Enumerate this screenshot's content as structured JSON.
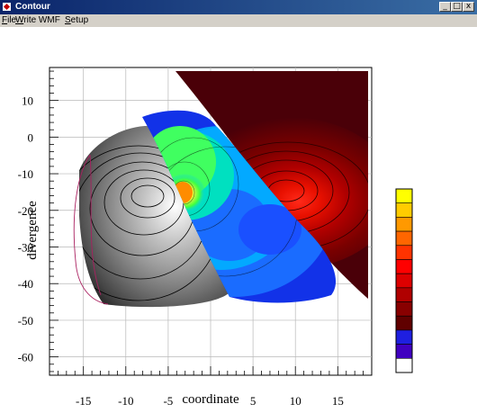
{
  "window": {
    "title": "Contour",
    "min_glyph": "_",
    "max_glyph": "□",
    "close_glyph": "x"
  },
  "menu": [
    {
      "label": "File",
      "underline": "F",
      "rest": "ile"
    },
    {
      "label": "Write WMF",
      "underline": "W",
      "rest": "rite WMF"
    },
    {
      "label": "Setup",
      "underline": "S",
      "rest": "etup"
    }
  ],
  "chart_data": {
    "type": "heatmap",
    "title": "",
    "xlabel": "coordinate",
    "ylabel": "divergence",
    "xlim": [
      -19,
      19
    ],
    "ylim": [
      -65,
      19
    ],
    "x_ticks": [
      "-15",
      "-10",
      "-5",
      "5",
      "10",
      "15"
    ],
    "x_tick_values": [
      -15,
      -10,
      -5,
      5,
      10,
      15
    ],
    "y_ticks": [
      "10",
      "0",
      "-10",
      "-20",
      "-30",
      "-40",
      "-50",
      "-60"
    ],
    "y_tick_values": [
      10,
      0,
      -10,
      -20,
      -30,
      -40,
      -50,
      -60
    ],
    "regions": [
      {
        "name": "",
        "colormap": "grayscale",
        "peak": [
          -7.5,
          -18
        ],
        "center": [
          -9,
          -22
        ]
      },
      {
        "name": "",
        "colormap": "rainbow",
        "peak": [
          -3,
          -16
        ],
        "center": [
          1,
          -25
        ]
      },
      {
        "name": "",
        "colormap": "dark-red",
        "peak": [
          8.5,
          -15
        ],
        "center": [
          8,
          -15
        ]
      }
    ],
    "colorbar_colors": [
      "#ffff00",
      "#ffcc00",
      "#ff9900",
      "#ff6600",
      "#ff3300",
      "#ff0000",
      "#dd0000",
      "#b00000",
      "#880000",
      "#600000",
      "#1f1fe0",
      "#4000c0",
      "#ffffff"
    ]
  }
}
